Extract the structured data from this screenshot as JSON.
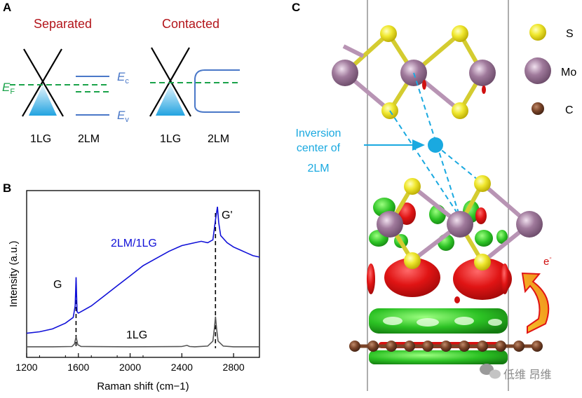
{
  "figure": {
    "panel_a": {
      "label": "A",
      "titles": {
        "separated": "Separated",
        "contacted": "Contacted"
      },
      "fermi": {
        "symbol": "E",
        "sub": "F"
      },
      "conduction": {
        "symbol": "E",
        "sub": "c"
      },
      "valence": {
        "symbol": "E",
        "sub": "v"
      },
      "materials": {
        "graphene": "1LG",
        "mos2": "2LM"
      }
    },
    "panel_b": {
      "label": "B",
      "peak_g": "G",
      "peak_g2": "G'",
      "series_2lm": "2LM/1LG",
      "series_1lg": "1LG"
    },
    "panel_c": {
      "label": "C",
      "legend": {
        "s": "S",
        "mo": "Mo",
        "c": "C"
      },
      "inversion_lines": [
        "Inversion",
        "center of",
        "2LM"
      ],
      "electron": {
        "base": "e",
        "sup": "-"
      },
      "watermark": "低维 昂维"
    },
    "colors": {
      "graphene_blue": "#29a8e0",
      "fermi_green": "#1aa34a",
      "band_blue": "#4a78c8",
      "spec_2lm": "#1010d8",
      "spec_1lg": "#555555",
      "sulfur": "#e8e020",
      "molybdenum": "#a07a9c",
      "carbon": "#6b3a22",
      "density_red": "#e01010",
      "density_green": "#28c020"
    }
  },
  "chart_data": {
    "type": "line",
    "title": "",
    "xlabel": "Raman shift (cm−1)",
    "ylabel": "Intensity (a.u.)",
    "xlim": [
      1200,
      3000
    ],
    "xticks": [
      1200,
      1600,
      2000,
      2400,
      2800
    ],
    "xtick_labels": [
      "1200",
      "1600",
      "2000",
      "2400",
      "2800"
    ],
    "y_units": "arbitrary (a.u.)",
    "peak_positions_cm": {
      "G": 1582,
      "G_prime": 2660
    },
    "series": [
      {
        "name": "2LM/1LG",
        "x": [
          1200,
          1300,
          1400,
          1500,
          1560,
          1575,
          1582,
          1590,
          1600,
          1700,
          1800,
          1900,
          2000,
          2100,
          2200,
          2300,
          2400,
          2500,
          2550,
          2600,
          2640,
          2660,
          2675,
          2685,
          2700,
          2750,
          2800,
          2850,
          2900,
          2950,
          3000
        ],
        "y": [
          0.09,
          0.1,
          0.12,
          0.16,
          0.2,
          0.28,
          0.48,
          0.24,
          0.23,
          0.28,
          0.35,
          0.42,
          0.49,
          0.56,
          0.61,
          0.66,
          0.7,
          0.72,
          0.73,
          0.72,
          0.74,
          0.88,
          0.97,
          0.86,
          0.77,
          0.72,
          0.69,
          0.67,
          0.65,
          0.63,
          0.62
        ]
      },
      {
        "name": "1LG",
        "x": [
          1200,
          1400,
          1550,
          1570,
          1582,
          1595,
          1620,
          2000,
          2400,
          2440,
          2460,
          2500,
          2600,
          2640,
          2652,
          2660,
          2668,
          2680,
          2720,
          2800,
          3000
        ],
        "y": [
          0.01,
          0.01,
          0.012,
          0.03,
          0.08,
          0.025,
          0.012,
          0.01,
          0.012,
          0.02,
          0.012,
          0.01,
          0.015,
          0.05,
          0.14,
          0.22,
          0.14,
          0.05,
          0.015,
          0.01,
          0.01
        ]
      }
    ]
  }
}
